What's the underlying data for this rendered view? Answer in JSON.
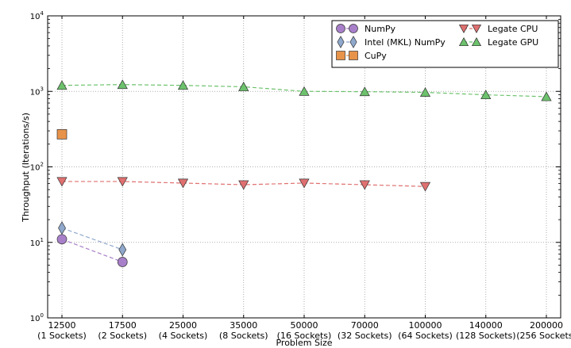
{
  "chart_data": {
    "type": "line",
    "title": "",
    "xlabel": "Problem Size",
    "ylabel": "Throughput (Iterations/s)",
    "yscale": "log",
    "ylim": [
      1,
      10000
    ],
    "y_ticks": [
      {
        "value": 1,
        "base": "10",
        "exp": "0"
      },
      {
        "value": 10,
        "base": "10",
        "exp": "1"
      },
      {
        "value": 100,
        "base": "10",
        "exp": "2"
      },
      {
        "value": 1000,
        "base": "10",
        "exp": "3"
      },
      {
        "value": 10000,
        "base": "10",
        "exp": "4"
      }
    ],
    "categories": [
      {
        "size": "12500",
        "sockets": "(1 Sockets)"
      },
      {
        "size": "17500",
        "sockets": "(2 Sockets)"
      },
      {
        "size": "25000",
        "sockets": "(4 Sockets)"
      },
      {
        "size": "35000",
        "sockets": "(8 Sockets)"
      },
      {
        "size": "50000",
        "sockets": "(16 Sockets)"
      },
      {
        "size": "70000",
        "sockets": "(32 Sockets)"
      },
      {
        "size": "100000",
        "sockets": "(64 Sockets)"
      },
      {
        "size": "140000",
        "sockets": "(128 Sockets)"
      },
      {
        "size": "200000",
        "sockets": "(256 Sockets)"
      }
    ],
    "grid": true,
    "legend_position": "top-right",
    "series": [
      {
        "name": "NumPy",
        "marker": "circle",
        "color": "#a87fc9",
        "values": [
          11,
          5.5,
          null,
          null,
          null,
          null,
          null,
          null,
          null
        ]
      },
      {
        "name": "Intel (MKL) NumPy",
        "marker": "diamond",
        "color": "#8fa8cc",
        "values": [
          15.5,
          8,
          null,
          null,
          null,
          null,
          null,
          null,
          null
        ]
      },
      {
        "name": "CuPy",
        "marker": "square",
        "color": "#e8934a",
        "values": [
          270,
          null,
          null,
          null,
          null,
          null,
          null,
          null,
          null
        ]
      },
      {
        "name": "Legate CPU",
        "marker": "triangle-down",
        "color": "#e07070",
        "values": [
          64,
          64,
          61,
          58,
          61,
          58,
          55,
          null,
          null
        ]
      },
      {
        "name": "Legate GPU",
        "marker": "triangle-up",
        "color": "#6cc26c",
        "values": [
          1200,
          1230,
          1200,
          1150,
          1000,
          990,
          970,
          900,
          850
        ]
      }
    ]
  }
}
